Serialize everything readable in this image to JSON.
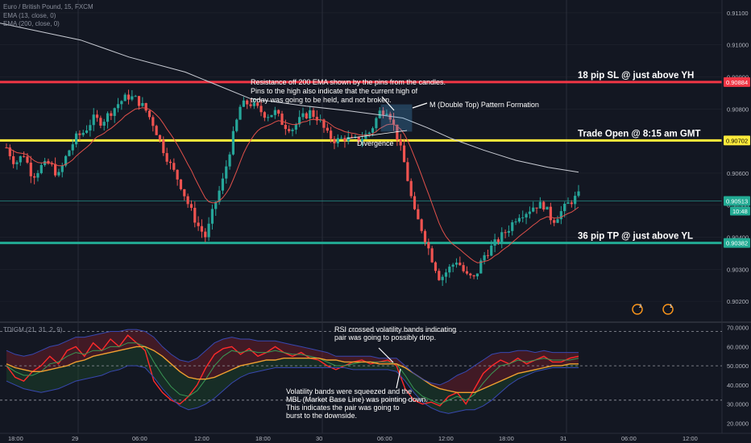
{
  "header": {
    "symbol": "Euro / British Pound, 15, FXCM",
    "ema1": "EMA (13, close, 0)",
    "ema2": "EMA (200, close, 0)",
    "indicator": "TDIGM (21, 31, 2, 9)"
  },
  "colors": {
    "background": "#131722",
    "grid": "#2a2e39",
    "bull": "#26a69a",
    "bear": "#ef5350",
    "ema13": "#e0504a",
    "ema200": "#c9ccd4",
    "sl_line": "#f23645",
    "open_line": "#ffeb3b",
    "tp_line": "#22ab94"
  },
  "price_axis": {
    "ticks": [
      "0.91100",
      "0.91000",
      "0.90900",
      "0.90800",
      "0.90700",
      "0.90600",
      "0.90500",
      "0.90400",
      "0.90300",
      "0.90200"
    ],
    "current_price": "0.90513",
    "countdown": "10:48"
  },
  "levels": {
    "sl": {
      "price": 0.90884,
      "label": "0.90884",
      "text": "18 pip SL @ just above YH"
    },
    "open": {
      "price": 0.90702,
      "label": "0.90702",
      "text": "Trade Open @ 8:15 am GMT"
    },
    "tp": {
      "price": 0.90382,
      "label": "0.90382",
      "text": "36 pip TP @ just above YL"
    }
  },
  "time_axis": {
    "ticks": [
      "18:00",
      "29",
      "06:00",
      "12:00",
      "18:00",
      "30",
      "06:00",
      "12:00",
      "18:00",
      "31",
      "06:00",
      "12:00"
    ]
  },
  "annotations": {
    "resistance": [
      "Resistance off 200 EMA shown by the pins from the candles.",
      "Pins to the high also indicate that the current high of",
      "today was going to be held, and not broken."
    ],
    "mtop": "M (Double Top) Pattern Formation",
    "divergence": "Divergence",
    "rsi": [
      "RSI crossed volatility bands indicating",
      "pair was going to possibly drop."
    ],
    "bands": [
      "Volatility bands were squeezed and the",
      "MBL (Market Base Line) was pointing down.",
      "This indicates the pair was going to",
      "burst to the downside."
    ]
  },
  "event_badges": [
    "2",
    "1"
  ],
  "chart_data": [
    {
      "type": "candlestick",
      "title": "Euro / British Pound, 15, FXCM",
      "ylim": [
        0.9014,
        0.9114
      ],
      "y_ticks": [
        0.911,
        0.91,
        0.909,
        0.908,
        0.907,
        0.906,
        0.905,
        0.904,
        0.903,
        0.902
      ],
      "x_ticks": [
        "18:00",
        "29",
        "06:00",
        "12:00",
        "18:00",
        "30",
        "06:00",
        "12:00",
        "18:00",
        "31",
        "06:00",
        "12:00"
      ],
      "series": [
        {
          "name": "EMA (13, close, 0)",
          "type": "line"
        },
        {
          "name": "EMA (200, close, 0)",
          "type": "line"
        }
      ],
      "close_path": [
        0.9068,
        0.9063,
        0.9066,
        0.9059,
        0.9062,
        0.9063,
        0.9059,
        0.9066,
        0.9071,
        0.9073,
        0.9077,
        0.9076,
        0.9079,
        0.9082,
        0.9084,
        0.9083,
        0.908,
        0.9075,
        0.9068,
        0.9062,
        0.9057,
        0.905,
        0.9044,
        0.904,
        0.905,
        0.9058,
        0.907,
        0.9081,
        0.9082,
        0.908,
        0.9078,
        0.9079,
        0.9075,
        0.9074,
        0.9077,
        0.9079,
        0.9077,
        0.9072,
        0.907,
        0.9071,
        0.907,
        0.9071,
        0.9073,
        0.9079,
        0.908,
        0.9072,
        0.9062,
        0.9048,
        0.9042,
        0.9034,
        0.9027,
        0.903,
        0.9033,
        0.9028,
        0.9027,
        0.9034,
        0.9037,
        0.904,
        0.9043,
        0.9047,
        0.9048,
        0.905,
        0.905,
        0.9045,
        0.9048,
        0.9051,
        0.9053
      ],
      "ema200_path": [
        [
          0,
          0.91068
        ],
        [
          100,
          0.91015
        ],
        [
          160,
          0.90962
        ],
        [
          230,
          0.90915
        ],
        [
          270,
          0.90874
        ],
        [
          310,
          0.90833
        ],
        [
          380,
          0.90809
        ],
        [
          430,
          0.90795
        ],
        [
          470,
          0.90782
        ],
        [
          500,
          0.90772
        ],
        [
          530,
          0.90742
        ],
        [
          560,
          0.90708
        ],
        [
          600,
          0.90672
        ],
        [
          640,
          0.9064
        ],
        [
          680,
          0.90618
        ],
        [
          718,
          0.90603
        ]
      ],
      "levels": [
        {
          "label": "18 pip SL @ just above YH",
          "value": 0.90884
        },
        {
          "label": "Trade Open @ 8:15 am GMT",
          "value": 0.90702
        },
        {
          "label": "36 pip TP @ just above YL",
          "value": 0.90382
        }
      ],
      "last": 0.90513
    },
    {
      "type": "line",
      "title": "TDIGM (21, 31, 2, 9)",
      "ylim": [
        18,
        72
      ],
      "y_ticks": [
        70,
        60,
        50,
        40,
        30,
        20
      ],
      "y_tick_labels": [
        "70.0000",
        "60.0000",
        "50.0000",
        "40.0000",
        "30.0000",
        "20.0000"
      ],
      "dashed_levels": [
        68,
        50,
        32
      ],
      "series": [
        {
          "name": "RSI",
          "color": "#ff2a2a",
          "values": [
            50,
            44,
            42,
            47,
            50,
            55,
            51,
            58,
            60,
            55,
            62,
            58,
            64,
            60,
            66,
            62,
            58,
            42,
            36,
            32,
            30,
            34,
            40,
            49,
            56,
            59,
            60,
            56,
            59,
            55,
            57,
            60,
            57,
            55,
            57,
            54,
            53,
            50,
            48,
            50,
            52,
            53,
            51,
            52,
            53,
            50,
            38,
            32,
            30,
            31,
            29,
            34,
            36,
            30,
            38,
            46,
            50,
            53,
            51,
            54,
            51,
            53,
            55,
            52,
            52,
            54,
            55
          ]
        },
        {
          "name": "Signal",
          "color": "#3a9a55",
          "values": [
            50,
            47,
            45,
            45,
            47,
            51,
            52,
            55,
            57,
            56,
            58,
            58,
            60,
            60,
            62,
            62,
            60,
            52,
            45,
            39,
            35,
            34,
            37,
            43,
            50,
            55,
            58,
            57,
            58,
            57,
            57,
            58,
            57,
            56,
            56,
            55,
            54,
            52,
            50,
            50,
            51,
            52,
            52,
            52,
            52,
            51,
            45,
            38,
            34,
            32,
            30,
            32,
            34,
            32,
            35,
            41,
            46,
            50,
            51,
            53,
            52,
            53,
            54,
            53,
            53,
            53,
            54
          ]
        },
        {
          "name": "MBL",
          "color": "#f0a030",
          "values": [
            51,
            49,
            48,
            47,
            47,
            48,
            49,
            50,
            52,
            53,
            55,
            56,
            57,
            58,
            59,
            60,
            60,
            58,
            55,
            51,
            47,
            44,
            43,
            43,
            44,
            46,
            48,
            50,
            51,
            52,
            53,
            53,
            54,
            54,
            54,
            54,
            54,
            53,
            53,
            52,
            52,
            52,
            52,
            51,
            51,
            51,
            49,
            46,
            43,
            40,
            38,
            37,
            36,
            36,
            36,
            38,
            40,
            42,
            44,
            46,
            47,
            48,
            49,
            50,
            50,
            51,
            51
          ]
        },
        {
          "name": "Upper band",
          "color": "#3848b0",
          "values": [
            58,
            56,
            55,
            56,
            58,
            60,
            61,
            63,
            65,
            65,
            66,
            67,
            68,
            68,
            69,
            69,
            68,
            65,
            60,
            56,
            53,
            52,
            54,
            58,
            62,
            64,
            65,
            64,
            64,
            63,
            63,
            63,
            62,
            61,
            60,
            59,
            58,
            57,
            55,
            55,
            55,
            55,
            55,
            54,
            54,
            54,
            50,
            46,
            43,
            41,
            40,
            42,
            45,
            47,
            50,
            53,
            56,
            57,
            57,
            58,
            58,
            57,
            58,
            57,
            57,
            57,
            57
          ]
        },
        {
          "name": "Lower band",
          "color": "#3848b0",
          "values": [
            42,
            40,
            38,
            37,
            36,
            37,
            38,
            40,
            42,
            43,
            44,
            45,
            47,
            48,
            50,
            50,
            49,
            44,
            38,
            33,
            29,
            27,
            28,
            30,
            33,
            37,
            41,
            44,
            46,
            47,
            48,
            49,
            49,
            49,
            49,
            49,
            49,
            49,
            49,
            49,
            48,
            48,
            48,
            48,
            48,
            47,
            42,
            36,
            31,
            28,
            26,
            25,
            26,
            27,
            27,
            29,
            32,
            36,
            40,
            43,
            45,
            47,
            48,
            49,
            49,
            49,
            49
          ]
        }
      ]
    }
  ]
}
